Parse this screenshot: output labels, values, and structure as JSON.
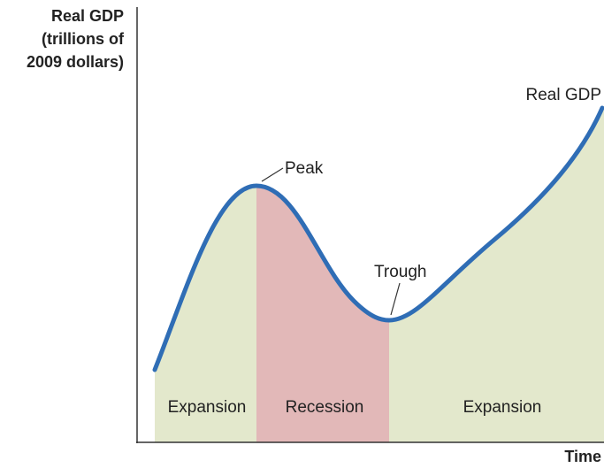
{
  "axes": {
    "y_label": [
      "Real GDP",
      "(trillions of",
      "2009 dollars)"
    ],
    "x_label": "Time"
  },
  "curve_label": "Real GDP",
  "annotations": {
    "peak": "Peak",
    "trough": "Trough"
  },
  "phases": [
    "Expansion",
    "Recession",
    "Expansion"
  ]
}
